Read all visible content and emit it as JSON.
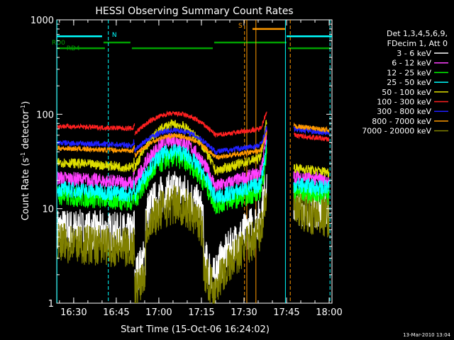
{
  "chart_data": {
    "type": "line",
    "title": "HESSI Observing Summary Count Rates",
    "xlabel": "Start Time (15-Oct-06 16:24:02)",
    "ylabel": "Count Rate (s",
    "ylabel_sup": "-1",
    "ylabel_rest": " detector",
    "ylabel_sup2": "-1",
    "ylabel_end": ")",
    "y_scale": "log",
    "ylim": [
      1,
      1000
    ],
    "xlim_minutes": [
      16.4,
      16.0
    ],
    "x_start": "16:24:02",
    "x_end": "18:01:00",
    "x_ticks": [
      "16:30",
      "16:45",
      "17:00",
      "17:15",
      "17:30",
      "17:45",
      "18:00"
    ],
    "y_ticks": [
      "1",
      "10",
      "100",
      "1000"
    ],
    "legend_header": [
      "Det 1,3,4,5,6,9,",
      "FDecim 1, Att 0"
    ],
    "series": [
      {
        "name": "3 - 6 keV",
        "color": "#ffffff"
      },
      {
        "name": "6 - 12 keV",
        "color": "#ff40ff"
      },
      {
        "name": "12 - 25 keV",
        "color": "#00ff00"
      },
      {
        "name": "25 - 50 keV",
        "color": "#00ffff"
      },
      {
        "name": "50 - 100 keV",
        "color": "#dddd00"
      },
      {
        "name": "100 - 300 keV",
        "color": "#ff2020"
      },
      {
        "name": "300 - 800 keV",
        "color": "#2020ff"
      },
      {
        "name": "800 - 7000 keV",
        "color": "#ff9900"
      },
      {
        "name": "7000 - 20000 keV",
        "color": "#808000"
      }
    ],
    "flags": [
      {
        "label": "N",
        "color": "#00ffff"
      },
      {
        "label": "S",
        "color": "#ff9900"
      },
      {
        "label": "RD0",
        "color": "#00a000"
      },
      {
        "label": "RD4",
        "color": "#00a000"
      }
    ]
  },
  "footer_timestamp": "13-Mar-2010 13:04"
}
